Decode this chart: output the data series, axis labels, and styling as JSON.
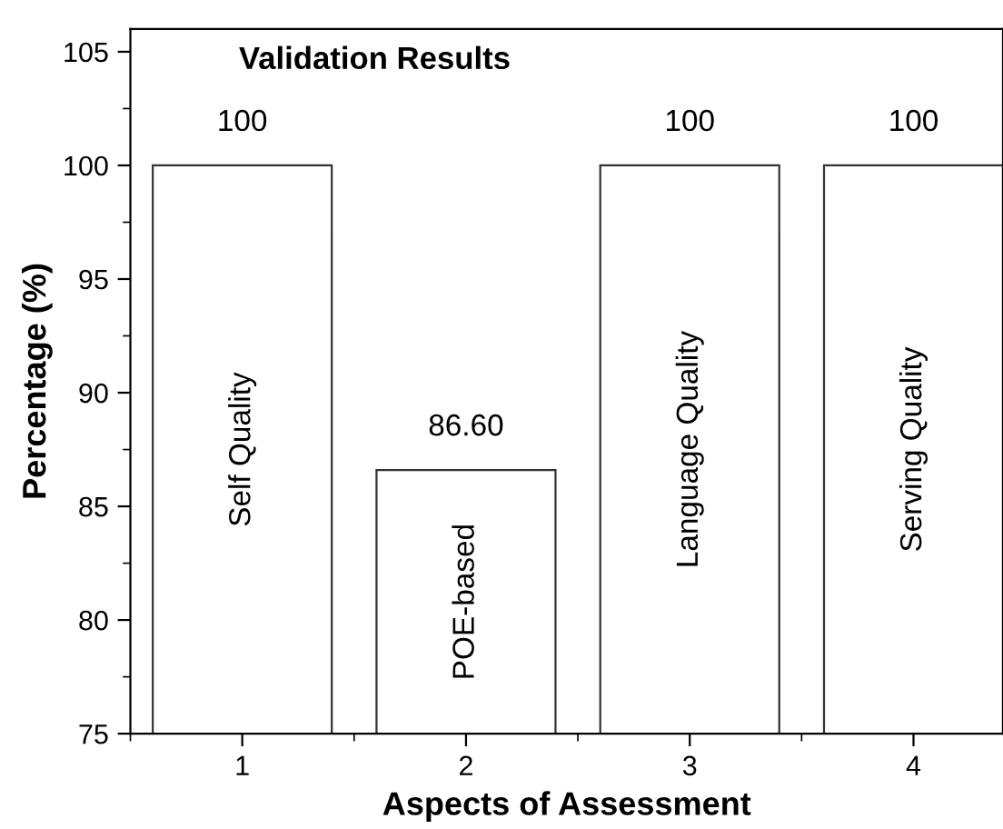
{
  "chart_data": {
    "type": "bar",
    "title": "Validation Results",
    "xlabel": "Aspects of Assessment",
    "ylabel": "Percentage (%)",
    "x": [
      1,
      2,
      3,
      4
    ],
    "values": [
      100,
      86.6,
      100,
      100
    ],
    "value_labels": [
      "100",
      "86.60",
      "100",
      "100"
    ],
    "color": "#ffffff",
    "xlim": [
      0.5,
      4.4
    ],
    "xticks": [
      1,
      2,
      3,
      4
    ],
    "ylim": [
      75,
      106
    ],
    "yticks": [
      75,
      80,
      85,
      90,
      95,
      100,
      105
    ],
    "annotations": [
      "Self Quality",
      "POE-based",
      "Language Quality",
      "Serving Quality"
    ],
    "grid": false,
    "legend": false
  }
}
